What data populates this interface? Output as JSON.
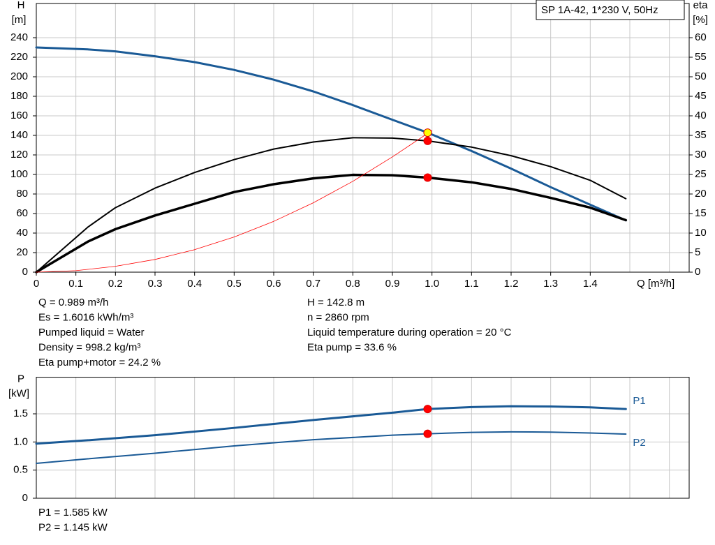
{
  "chart_data": [
    {
      "type": "line",
      "title": "SP 1A-42, 1*230 V, 50Hz",
      "x_label": "Q [m³/h]",
      "y_label": "H",
      "y_unit": "[m]",
      "y2_label": "eta",
      "y2_unit": "[%]",
      "xlim": [
        0,
        1.65
      ],
      "xticks": [
        0,
        0.1,
        0.2,
        0.3,
        0.4,
        0.5,
        0.6,
        0.7,
        0.8,
        0.9,
        {
          "value": 1,
          "label": "1.0"
        },
        1.1,
        1.2,
        1.3,
        1.4
      ],
      "xgrid": [
        0.1,
        0.2,
        0.3,
        0.4,
        0.5,
        0.6,
        0.7,
        0.8,
        0.9,
        1,
        1.1,
        1.2,
        1.3,
        1.4,
        1.5,
        1.6
      ],
      "ylim": [
        0,
        275
      ],
      "yticks": [
        0,
        20,
        40,
        60,
        80,
        100,
        120,
        140,
        160,
        180,
        200,
        220,
        240
      ],
      "y2lim": [
        0,
        68.75
      ],
      "y2ticks": [
        0,
        5,
        10,
        15,
        20,
        25,
        30,
        35,
        40,
        45,
        50,
        55,
        60
      ],
      "grid": true,
      "series": [
        {
          "color": "#1a5a96",
          "width": 3,
          "x": [
            0,
            0.13,
            0.2,
            0.3,
            0.4,
            0.5,
            0.6,
            0.7,
            0.8,
            0.9,
            0.989,
            1.1,
            1.2,
            1.3,
            1.4,
            1.49
          ],
          "values": [
            230,
            228,
            226,
            221,
            215,
            207,
            197,
            185,
            171,
            156,
            142.8,
            124,
            106,
            87,
            69,
            53
          ]
        },
        {
          "color": "#000000",
          "width": 2,
          "axis": "y2",
          "x": [
            0,
            0.13,
            0.2,
            0.3,
            0.4,
            0.5,
            0.6,
            0.7,
            0.8,
            0.9,
            0.989,
            1.1,
            1.2,
            1.3,
            1.4,
            1.49
          ],
          "values": [
            0,
            11.5,
            16.5,
            21.5,
            25.5,
            28.8,
            31.5,
            33.3,
            34.4,
            34.3,
            33.6,
            32,
            29.8,
            27,
            23.5,
            18.8
          ]
        },
        {
          "color": "#000000",
          "width": 3.5,
          "axis": "y2",
          "x": [
            0,
            0.13,
            0.2,
            0.3,
            0.4,
            0.5,
            0.6,
            0.7,
            0.8,
            0.9,
            0.989,
            1.1,
            1.2,
            1.3,
            1.4,
            1.49
          ],
          "values": [
            0,
            7.8,
            11,
            14.5,
            17.5,
            20.5,
            22.5,
            24,
            24.9,
            24.8,
            24.2,
            23,
            21.3,
            19,
            16.5,
            13.3
          ]
        },
        {
          "color": "#ff0000",
          "width": 0.8,
          "x": [
            0,
            0.1,
            0.2,
            0.3,
            0.4,
            0.5,
            0.6,
            0.7,
            0.8,
            0.9,
            1
          ],
          "values": [
            0,
            1.5,
            6,
            13,
            23,
            36,
            52,
            71,
            93,
            118,
            145
          ]
        }
      ],
      "points": [
        {
          "x": 0.989,
          "y": 142.8,
          "color": "#ffff00"
        },
        {
          "x": 0.989,
          "y": 33.6,
          "axis": "y2",
          "color": "#ff0000"
        },
        {
          "x": 0.989,
          "y": 24.2,
          "axis": "y2",
          "color": "#ff0000"
        }
      ]
    },
    {
      "type": "line",
      "y_label": "P",
      "y_unit": "[kW]",
      "xlim": [
        0,
        1.65
      ],
      "xgrid": [
        0.1,
        0.2,
        0.3,
        0.4,
        0.5,
        0.6,
        0.7,
        0.8,
        0.9,
        1,
        1.1,
        1.2,
        1.3,
        1.4,
        1.5,
        1.6
      ],
      "ylim": [
        0,
        2.15
      ],
      "yticks": [
        0,
        0.5,
        {
          "value": 1,
          "label": "1.0"
        },
        1.5
      ],
      "grid": true,
      "series": [
        {
          "name": "P1",
          "color": "#1a5a96",
          "width": 3,
          "x": [
            0,
            0.13,
            0.3,
            0.5,
            0.7,
            0.9,
            0.989,
            1.1,
            1.2,
            1.3,
            1.4,
            1.49
          ],
          "values": [
            0.97,
            1.03,
            1.12,
            1.25,
            1.39,
            1.52,
            1.585,
            1.62,
            1.635,
            1.63,
            1.615,
            1.585
          ]
        },
        {
          "name": "P2",
          "color": "#1a5a96",
          "width": 2,
          "x": [
            0,
            0.13,
            0.3,
            0.5,
            0.7,
            0.9,
            0.989,
            1.1,
            1.2,
            1.3,
            1.4,
            1.49
          ],
          "values": [
            0.62,
            0.7,
            0.8,
            0.93,
            1.04,
            1.12,
            1.145,
            1.17,
            1.18,
            1.175,
            1.16,
            1.14
          ]
        }
      ],
      "points": [
        {
          "x": 0.989,
          "y": 1.585,
          "color": "#ff0000"
        },
        {
          "x": 0.989,
          "y": 1.145,
          "color": "#ff0000"
        }
      ]
    }
  ],
  "readout_left": [
    "Q = 0.989 m³/h",
    "Es = 1.6016 kWh/m³",
    "Pumped liquid = Water",
    "Density = 998.2 kg/m³",
    "Eta pump+motor = 24.2 %"
  ],
  "readout_right": [
    "H = 142.8 m",
    "n = 2860 rpm",
    "Liquid temperature during operation = 20 °C",
    "Eta pump = 33.6 %"
  ],
  "power_readout": [
    "P1 = 1.585 kW",
    "P2 = 1.145 kW"
  ]
}
